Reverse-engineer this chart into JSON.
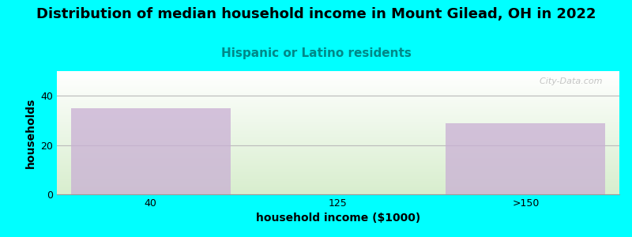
{
  "title": "Distribution of median household income in Mount Gilead, OH in 2022",
  "subtitle": "Hispanic or Latino residents",
  "xlabel": "household income ($1000)",
  "ylabel": "households",
  "categories": [
    "40",
    "125",
    ">150"
  ],
  "values": [
    35,
    0,
    29
  ],
  "bar_color": "#c9afd4",
  "bar_alpha": 0.75,
  "background_color": "#00ffff",
  "grad_bottom": "#d8eece",
  "grad_top": "#ffffff",
  "title_fontsize": 13,
  "subtitle_fontsize": 11,
  "subtitle_color": "#008888",
  "axis_label_fontsize": 10,
  "tick_fontsize": 9,
  "ylim": [
    0,
    50
  ],
  "yticks": [
    0,
    20,
    40
  ],
  "watermark": "  City-Data.com",
  "watermark_color": "#bbbbbb"
}
